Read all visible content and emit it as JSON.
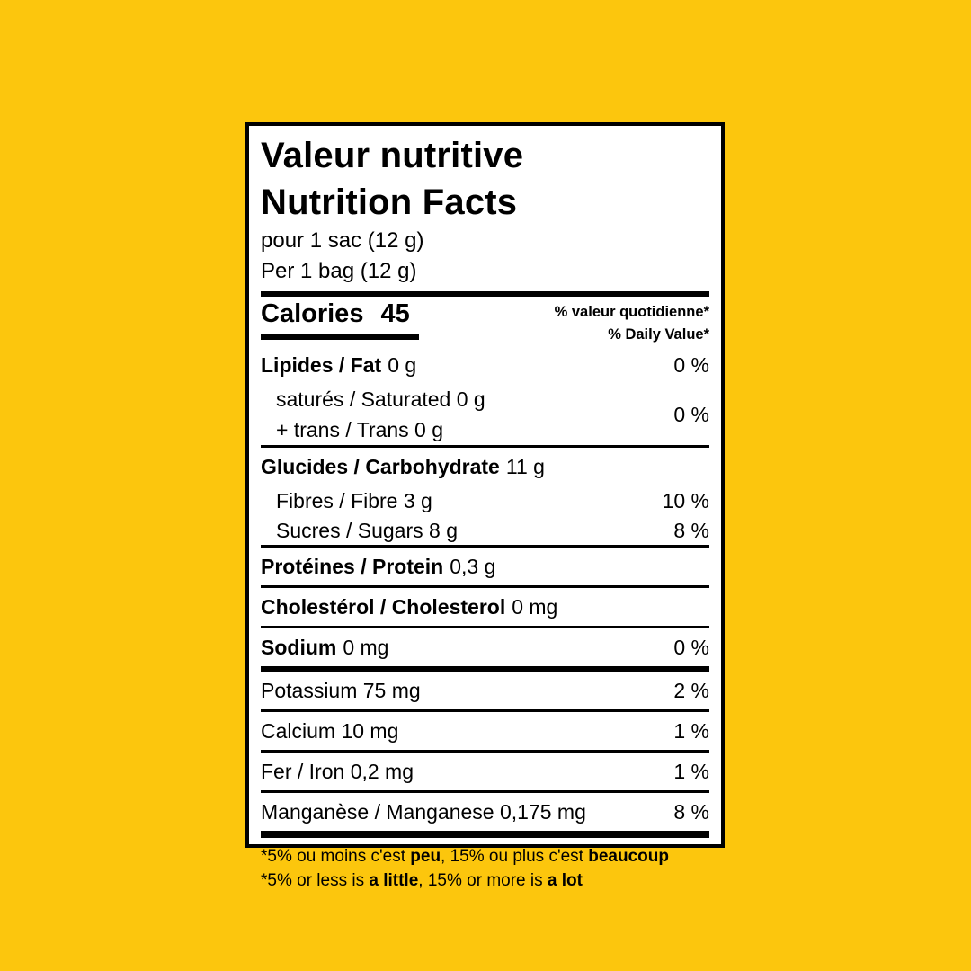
{
  "colors": {
    "page_background": "#FCC60D",
    "label_background": "#FFFFFF",
    "label_text": "#000000"
  },
  "label": {
    "title_fr": "Valeur nutritive",
    "title_en": "Nutrition Facts",
    "serving_fr": "pour 1 sac (12 g)",
    "serving_en": "Per 1 bag (12 g)",
    "calories": {
      "label": "Calories",
      "value": "45"
    },
    "dv_header": {
      "fr": "% valeur quotidienne*",
      "en": "% Daily Value*"
    },
    "rows": [
      {
        "bold": "Lipides / Fat",
        "rest": "0 g",
        "dv": "0 %"
      },
      {
        "line1": "saturés / Saturated 0 g",
        "line2": "+ trans / Trans 0 g",
        "dv": "0 %"
      },
      {
        "bold": "Glucides / Carbohydrate",
        "rest": "11 g",
        "dv": ""
      },
      {
        "text": "Fibres / Fibre 3 g",
        "dv": "10 %"
      },
      {
        "text": "Sucres / Sugars 8 g",
        "dv": "8 %"
      },
      {
        "bold": "Protéines / Protein",
        "rest": "0,3 g",
        "dv": ""
      },
      {
        "bold": "Cholestérol / Cholesterol",
        "rest": "0 mg",
        "dv": ""
      },
      {
        "bold": "Sodium",
        "rest": "0 mg",
        "dv": "0 %"
      },
      {
        "text": "Potassium 75 mg",
        "dv": "2 %"
      },
      {
        "text": "Calcium 10 mg",
        "dv": "1 %"
      },
      {
        "text": "Fer / Iron 0,2 mg",
        "dv": "1 %"
      },
      {
        "text": "Manganèse / Manganese 0,175 mg",
        "dv": "8 %"
      }
    ],
    "footnotes": {
      "fr": [
        {
          "t": "*5% ou moins c'est "
        },
        {
          "t": "peu",
          "b": true
        },
        {
          "t": ", 15% ou plus c'est "
        },
        {
          "t": "beaucoup",
          "b": true
        }
      ],
      "en": [
        {
          "t": "*5% or less is "
        },
        {
          "t": "a little",
          "b": true
        },
        {
          "t": ", 15% or more is "
        },
        {
          "t": "a lot",
          "b": true
        }
      ]
    }
  }
}
